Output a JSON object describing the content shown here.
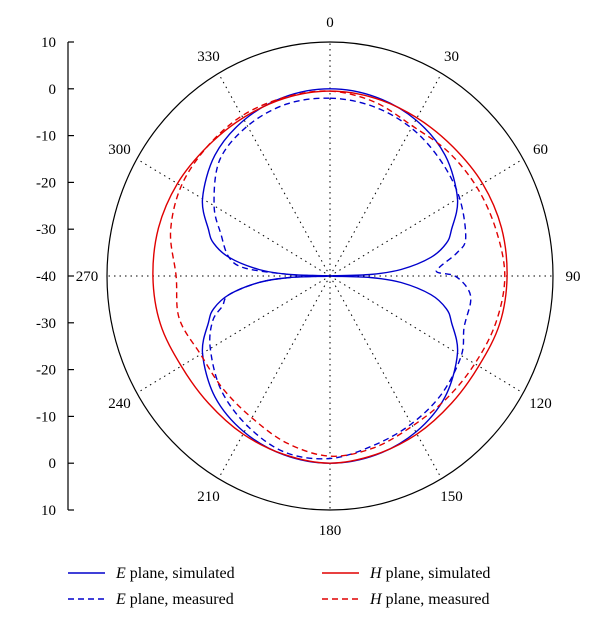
{
  "chart_data": {
    "type": "polar-line",
    "r_axis": {
      "ticks": [
        "10",
        "0",
        "-10",
        "-20",
        "-30",
        "-40",
        "-30",
        "-20",
        "-10",
        "0",
        "10"
      ],
      "range_db": [
        -40,
        10
      ]
    },
    "angle_axis": {
      "labels": [
        "0",
        "30",
        "60",
        "90",
        "120",
        "150",
        "180",
        "210",
        "240",
        "270",
        "300",
        "330"
      ],
      "direction": "clockwise",
      "zero": "top"
    },
    "grid": "dotted radial spokes every 30°",
    "legend_placement": "bottom",
    "series": [
      {
        "legend_italic": "E",
        "legend_rest": " plane, simulated",
        "color": "#0000cc",
        "dash": "solid",
        "points": [
          [
            0,
            0
          ],
          [
            15,
            -0.4
          ],
          [
            30,
            -1.5
          ],
          [
            45,
            -3.5
          ],
          [
            60,
            -7
          ],
          [
            70,
            -11
          ],
          [
            75,
            -13
          ],
          [
            80,
            -17
          ],
          [
            85,
            -24
          ],
          [
            88,
            -31
          ],
          [
            90,
            -40
          ],
          [
            92,
            -31
          ],
          [
            95,
            -24
          ],
          [
            100,
            -17
          ],
          [
            105,
            -13
          ],
          [
            110,
            -11
          ],
          [
            120,
            -7
          ],
          [
            135,
            -3.5
          ],
          [
            150,
            -1.5
          ],
          [
            165,
            -0.4
          ],
          [
            180,
            0
          ],
          [
            195,
            -0.4
          ],
          [
            210,
            -1.5
          ],
          [
            225,
            -3.5
          ],
          [
            240,
            -7
          ],
          [
            250,
            -11
          ],
          [
            255,
            -13
          ],
          [
            260,
            -17
          ],
          [
            265,
            -24
          ],
          [
            268,
            -31
          ],
          [
            270,
            -40
          ],
          [
            272,
            -31
          ],
          [
            275,
            -24
          ],
          [
            280,
            -17
          ],
          [
            285,
            -13
          ],
          [
            290,
            -11
          ],
          [
            300,
            -7
          ],
          [
            315,
            -3.5
          ],
          [
            330,
            -1.5
          ],
          [
            345,
            -0.4
          ]
        ]
      },
      {
        "legend_italic": "E",
        "legend_rest": " plane, measured",
        "color": "#0000cc",
        "dash": "dashed",
        "points": [
          [
            0,
            -2
          ],
          [
            15,
            -2.5
          ],
          [
            30,
            -3.5
          ],
          [
            45,
            -5
          ],
          [
            60,
            -6.5
          ],
          [
            75,
            -8.5
          ],
          [
            80,
            -11
          ],
          [
            85,
            -15
          ],
          [
            88,
            -16
          ],
          [
            90,
            -12
          ],
          [
            95,
            -9
          ],
          [
            100,
            -8
          ],
          [
            110,
            -8
          ],
          [
            120,
            -6
          ],
          [
            135,
            -4.5
          ],
          [
            150,
            -3.5
          ],
          [
            165,
            -2.5
          ],
          [
            180,
            -1
          ],
          [
            195,
            -1
          ],
          [
            210,
            -3
          ],
          [
            225,
            -5.5
          ],
          [
            240,
            -9
          ],
          [
            250,
            -12
          ],
          [
            255,
            -15
          ],
          [
            260,
            -17
          ],
          [
            265,
            -24
          ],
          [
            268,
            -31
          ],
          [
            270,
            -38
          ],
          [
            272,
            -31
          ],
          [
            275,
            -21
          ],
          [
            280,
            -17
          ],
          [
            290,
            -14
          ],
          [
            300,
            -10
          ],
          [
            315,
            -5
          ],
          [
            330,
            -3
          ],
          [
            345,
            -2
          ]
        ]
      },
      {
        "legend_italic": "H",
        "legend_rest": " plane, simulated",
        "color": "#e00000",
        "dash": "solid",
        "points": [
          [
            0,
            -0.5
          ],
          [
            15,
            -0.7
          ],
          [
            30,
            -1
          ],
          [
            45,
            -1
          ],
          [
            60,
            -0.5
          ],
          [
            75,
            -0.2
          ],
          [
            90,
            -0.3
          ],
          [
            105,
            -0.6
          ],
          [
            120,
            -1.5
          ],
          [
            135,
            -1.5
          ],
          [
            150,
            -1
          ],
          [
            165,
            -0.5
          ],
          [
            180,
            0
          ],
          [
            195,
            -0.5
          ],
          [
            210,
            -1
          ],
          [
            225,
            -1.5
          ],
          [
            240,
            -1.5
          ],
          [
            255,
            -0.6
          ],
          [
            270,
            -0.3
          ],
          [
            285,
            -0.2
          ],
          [
            300,
            -0.5
          ],
          [
            315,
            -1
          ],
          [
            330,
            -1
          ],
          [
            345,
            -0.7
          ]
        ]
      },
      {
        "legend_italic": "H",
        "legend_rest": " plane, measured",
        "color": "#e00000",
        "dash": "dashed",
        "points": [
          [
            0,
            -0.5
          ],
          [
            15,
            -1.5
          ],
          [
            30,
            -3
          ],
          [
            45,
            -2.5
          ],
          [
            60,
            -2
          ],
          [
            75,
            -1.5
          ],
          [
            90,
            -0.8
          ],
          [
            105,
            -1.5
          ],
          [
            120,
            -2.5
          ],
          [
            135,
            -3
          ],
          [
            150,
            -3
          ],
          [
            165,
            -2
          ],
          [
            180,
            -1.5
          ],
          [
            195,
            -3
          ],
          [
            210,
            -5
          ],
          [
            225,
            -6
          ],
          [
            240,
            -6.5
          ],
          [
            255,
            -5
          ],
          [
            270,
            -5.5
          ],
          [
            285,
            -3
          ],
          [
            300,
            -1.5
          ],
          [
            315,
            -1
          ],
          [
            330,
            -0.5
          ],
          [
            345,
            -0.5
          ]
        ]
      }
    ]
  }
}
